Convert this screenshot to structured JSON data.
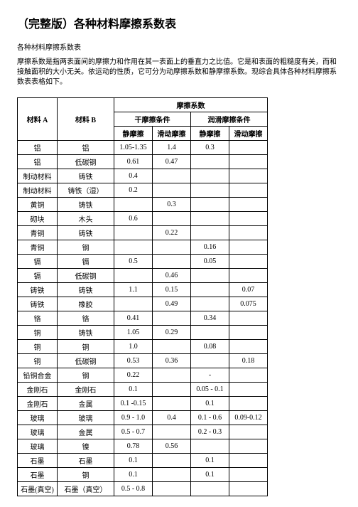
{
  "title": "（完整版）各种材料摩擦系数表",
  "subtitle": "各种材料摩擦系数表",
  "desc": "摩擦系数是指两表面间的摩擦力和作用在其一表面上的垂直力之比值。它是和表面的粗糙度有关，而和接触面积的大小无关。依运动的性质，它可分为动摩擦系数和静摩擦系数。现综合具体各种材料摩擦系数表表格如下。",
  "header": {
    "matA": "材料 A",
    "matB": "材料 B",
    "coef": "摩擦系数",
    "dry": "干摩擦条件",
    "lub": "润滑摩擦条件",
    "stat": "静摩擦",
    "dyn": "滑动摩擦"
  },
  "rows": [
    {
      "a": "铝",
      "b": "铝",
      "v": [
        "1.05-1.35",
        "1.4",
        "0.3",
        ""
      ]
    },
    {
      "a": "铝",
      "b": "低碳钢",
      "v": [
        "0.61",
        "0.47",
        "",
        ""
      ]
    },
    {
      "a": "制动材料",
      "b": "铸铁",
      "v": [
        "0.4",
        "",
        "",
        ""
      ]
    },
    {
      "a": "制动材料",
      "b": "铸铁（湿）",
      "v": [
        "0.2",
        "",
        "",
        ""
      ]
    },
    {
      "a": "黄铜",
      "b": "铸铁",
      "v": [
        "",
        "0.3",
        "",
        ""
      ]
    },
    {
      "a": "砌块",
      "b": "木头",
      "v": [
        "0.6",
        "",
        "",
        ""
      ]
    },
    {
      "a": "青铜",
      "b": "铸铁",
      "v": [
        "",
        "0.22",
        "",
        ""
      ]
    },
    {
      "a": "青铜",
      "b": "钢",
      "v": [
        "",
        "",
        "0.16",
        ""
      ]
    },
    {
      "a": "镉",
      "b": "镉",
      "v": [
        "0.5",
        "",
        "0.05",
        ""
      ]
    },
    {
      "a": "镉",
      "b": "低碳钢",
      "v": [
        "",
        "0.46",
        "",
        ""
      ]
    },
    {
      "a": "铸铁",
      "b": "铸铁",
      "v": [
        "1.1",
        "0.15",
        "",
        "0.07"
      ]
    },
    {
      "a": "铸铁",
      "b": "橡胶",
      "v": [
        "",
        "0.49",
        "",
        "0.075"
      ]
    },
    {
      "a": "铬",
      "b": "铬",
      "v": [
        "0.41",
        "",
        "0.34",
        ""
      ]
    },
    {
      "a": "铜",
      "b": "铸铁",
      "v": [
        "1.05",
        "0.29",
        "",
        ""
      ]
    },
    {
      "a": "铜",
      "b": "铜",
      "v": [
        "1.0",
        "",
        "0.08",
        ""
      ]
    },
    {
      "a": "铜",
      "b": "低碳钢",
      "v": [
        "0.53",
        "0.36",
        "",
        "0.18"
      ]
    },
    {
      "a": "铅铜合金",
      "b": "钢",
      "v": [
        "0.22",
        "",
        "-",
        ""
      ]
    },
    {
      "a": "金刚石",
      "b": "金刚石",
      "v": [
        "0.1",
        "",
        "0.05 - 0.1",
        ""
      ]
    },
    {
      "a": "金刚石",
      "b": "金属",
      "v": [
        "0.1 -0.15",
        "",
        "0.1",
        ""
      ]
    },
    {
      "a": "玻璃",
      "b": "玻璃",
      "v": [
        "0.9 - 1.0",
        "0.4",
        "0.1 - 0.6",
        "0.09-0.12"
      ]
    },
    {
      "a": "玻璃",
      "b": "金属",
      "v": [
        "0.5 - 0.7",
        "",
        "0.2 - 0.3",
        ""
      ]
    },
    {
      "a": "玻璃",
      "b": "镍",
      "v": [
        "0.78",
        "0.56",
        "",
        ""
      ]
    },
    {
      "a": "石墨",
      "b": "石墨",
      "v": [
        "0.1",
        "",
        "0.1",
        ""
      ]
    },
    {
      "a": "石墨",
      "b": "钢",
      "v": [
        "0.1",
        "",
        "0.1",
        ""
      ]
    },
    {
      "a": "石墨(真空)",
      "b": "石墨（真空）",
      "v": [
        "0.5 - 0.8",
        "",
        "",
        ""
      ]
    }
  ]
}
